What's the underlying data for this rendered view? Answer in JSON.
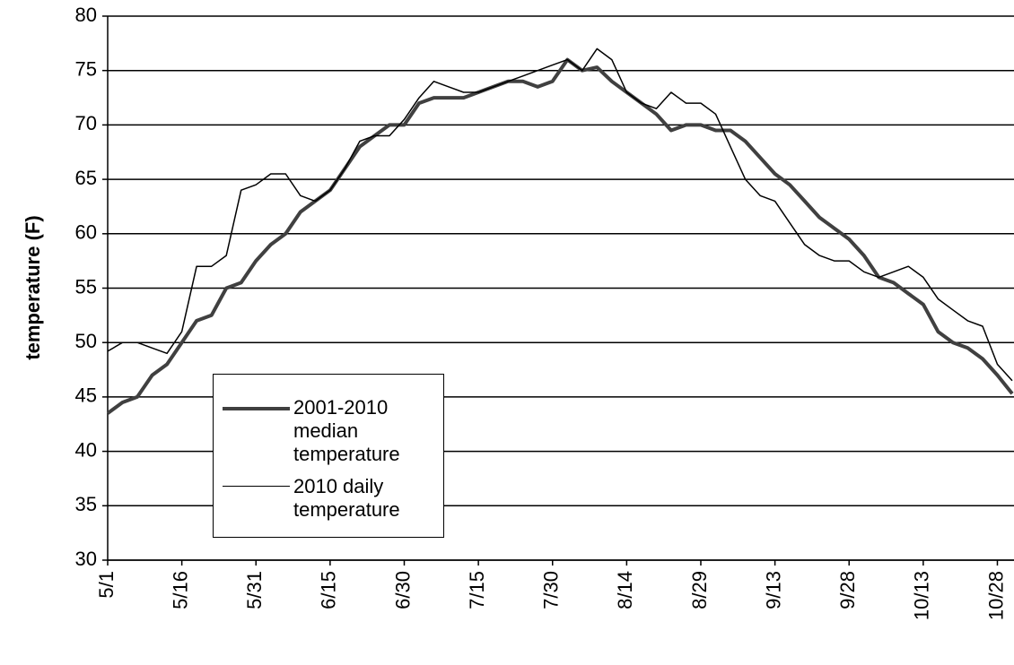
{
  "chart_data": {
    "type": "line",
    "y_label": "temperature (F)",
    "categories": [
      "5/1",
      null,
      null,
      null,
      null,
      "5/16",
      null,
      null,
      null,
      null,
      "5/31",
      null,
      null,
      null,
      null,
      "6/15",
      null,
      null,
      null,
      null,
      "6/30",
      null,
      null,
      null,
      null,
      "7/15",
      null,
      null,
      null,
      null,
      "7/30",
      null,
      null,
      null,
      null,
      "8/14",
      null,
      null,
      null,
      null,
      "8/29",
      null,
      null,
      null,
      null,
      "9/13",
      null,
      null,
      null,
      null,
      "9/28",
      null,
      null,
      null,
      null,
      "10/13",
      null,
      null,
      null,
      null,
      "10/28",
      null
    ],
    "series": [
      {
        "name": "2001-2010 median temperature",
        "color": "#404040",
        "width": 4,
        "values": [
          43.5,
          44.5,
          45,
          47,
          48,
          50,
          52,
          52.5,
          55,
          55.5,
          57.5,
          59,
          60,
          62,
          63,
          64,
          66,
          68,
          69,
          70,
          70,
          72,
          72.5,
          72.5,
          72.5,
          73,
          73.5,
          74,
          74,
          73.5,
          74,
          76,
          75,
          75.3,
          74,
          73,
          72,
          71,
          69.5,
          70,
          70,
          69.5,
          69.5,
          68.5,
          67,
          65.5,
          64.5,
          63,
          61.5,
          60.5,
          59.5,
          58,
          56,
          55.5,
          54.5,
          53.5,
          51,
          50,
          49.5,
          48.5,
          47,
          45.3
        ]
      },
      {
        "name": "2010 daily temperature",
        "color": "#000000",
        "width": 1.5,
        "values": [
          49.2,
          50,
          50,
          49.5,
          49,
          51,
          57,
          57,
          58,
          64,
          64.5,
          65.5,
          65.5,
          63.5,
          63,
          64,
          66,
          68.5,
          69,
          69,
          70.5,
          72.5,
          74,
          73.5,
          73,
          73,
          73.5,
          74,
          74.5,
          75,
          75.5,
          76,
          75,
          77,
          76,
          73,
          72,
          71.5,
          73,
          72,
          72,
          71,
          68,
          65,
          63.5,
          63,
          61,
          59,
          58,
          57.5,
          57.5,
          56.5,
          56,
          56.5,
          57,
          56,
          54,
          53,
          52,
          51.5,
          48,
          46.5
        ]
      }
    ],
    "ylim": [
      30,
      80
    ],
    "yticks": [
      30,
      35,
      40,
      45,
      50,
      55,
      60,
      65,
      70,
      75,
      80
    ],
    "grid": true,
    "legend": "lower left"
  }
}
